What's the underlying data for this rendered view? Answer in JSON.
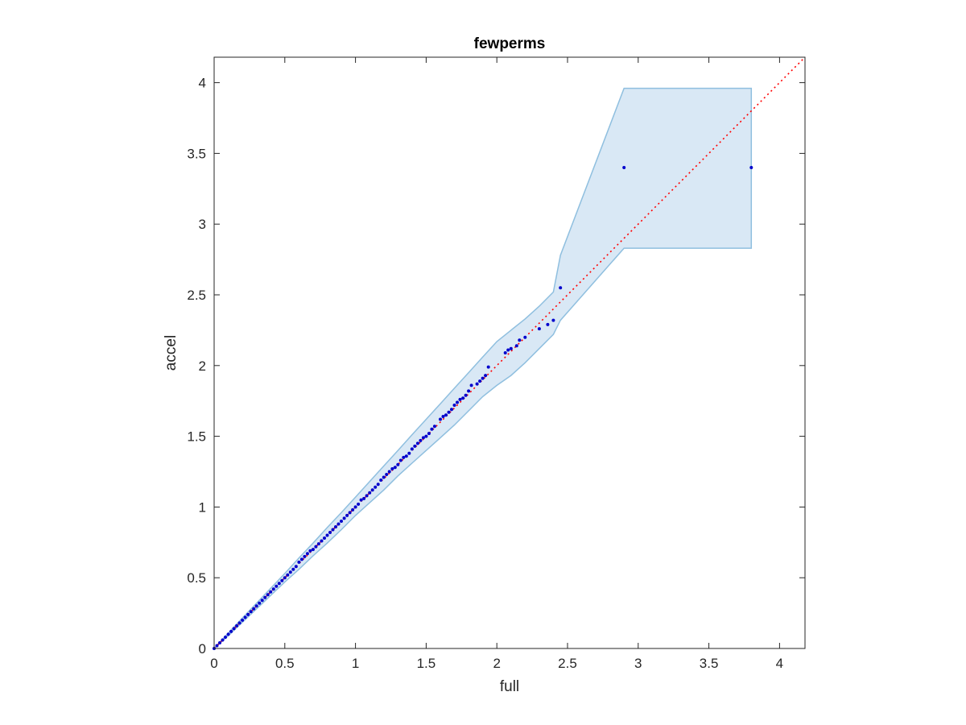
{
  "chart_data": {
    "type": "scatter",
    "title": "fewperms",
    "xlabel": "full",
    "ylabel": "accel",
    "xlim": [
      0,
      4.18
    ],
    "ylim": [
      0,
      4.18
    ],
    "xticks": [
      0,
      0.5,
      1,
      1.5,
      2,
      2.5,
      3,
      3.5,
      4
    ],
    "yticks": [
      0,
      0.5,
      1,
      1.5,
      2,
      2.5,
      3,
      3.5,
      4
    ],
    "xtick_labels": [
      "0",
      "0.5",
      "1",
      "1.5",
      "2",
      "2.5",
      "3",
      "3.5",
      "4"
    ],
    "ytick_labels": [
      "0",
      "0.5",
      "1",
      "1.5",
      "2",
      "2.5",
      "3",
      "3.5",
      "4"
    ],
    "grid": false,
    "reference_line": {
      "style": "dotted",
      "color": "#ff0000",
      "from": [
        0,
        0
      ],
      "to": [
        4.18,
        4.18
      ]
    },
    "band": {
      "fill": "#d9e8f5",
      "stroke": "#8fbfdf",
      "upper": [
        [
          0,
          0
        ],
        [
          0.1,
          0.11
        ],
        [
          0.2,
          0.215
        ],
        [
          0.3,
          0.32
        ],
        [
          0.4,
          0.425
        ],
        [
          0.5,
          0.53
        ],
        [
          0.6,
          0.64
        ],
        [
          0.7,
          0.745
        ],
        [
          0.8,
          0.855
        ],
        [
          0.9,
          0.96
        ],
        [
          1.0,
          1.07
        ],
        [
          1.1,
          1.18
        ],
        [
          1.2,
          1.29
        ],
        [
          1.3,
          1.4
        ],
        [
          1.4,
          1.51
        ],
        [
          1.5,
          1.62
        ],
        [
          1.6,
          1.73
        ],
        [
          1.7,
          1.84
        ],
        [
          1.8,
          1.95
        ],
        [
          1.9,
          2.06
        ],
        [
          2.0,
          2.17
        ],
        [
          2.1,
          2.25
        ],
        [
          2.2,
          2.33
        ],
        [
          2.3,
          2.42
        ],
        [
          2.4,
          2.52
        ],
        [
          2.45,
          2.78
        ],
        [
          2.9,
          3.96
        ],
        [
          3.8,
          3.96
        ]
      ],
      "lower": [
        [
          0,
          0
        ],
        [
          0.1,
          0.09
        ],
        [
          0.2,
          0.185
        ],
        [
          0.3,
          0.28
        ],
        [
          0.4,
          0.375
        ],
        [
          0.5,
          0.47
        ],
        [
          0.6,
          0.56
        ],
        [
          0.7,
          0.655
        ],
        [
          0.8,
          0.745
        ],
        [
          0.9,
          0.84
        ],
        [
          1.0,
          0.94
        ],
        [
          1.1,
          1.03
        ],
        [
          1.2,
          1.12
        ],
        [
          1.3,
          1.22
        ],
        [
          1.4,
          1.31
        ],
        [
          1.5,
          1.4
        ],
        [
          1.6,
          1.49
        ],
        [
          1.7,
          1.58
        ],
        [
          1.8,
          1.68
        ],
        [
          1.9,
          1.78
        ],
        [
          2.0,
          1.86
        ],
        [
          2.1,
          1.93
        ],
        [
          2.2,
          2.02
        ],
        [
          2.3,
          2.12
        ],
        [
          2.4,
          2.22
        ],
        [
          2.45,
          2.32
        ],
        [
          2.9,
          2.83
        ],
        [
          3.8,
          2.83
        ]
      ]
    },
    "series": [
      {
        "color": "#0000cc",
        "points": [
          [
            0,
            0
          ],
          [
            0.02,
            0.02
          ],
          [
            0.04,
            0.04
          ],
          [
            0.06,
            0.06
          ],
          [
            0.08,
            0.08
          ],
          [
            0.1,
            0.1
          ],
          [
            0.12,
            0.12
          ],
          [
            0.14,
            0.14
          ],
          [
            0.16,
            0.16
          ],
          [
            0.18,
            0.18
          ],
          [
            0.2,
            0.2
          ],
          [
            0.22,
            0.22
          ],
          [
            0.24,
            0.24
          ],
          [
            0.26,
            0.26
          ],
          [
            0.28,
            0.28
          ],
          [
            0.3,
            0.3
          ],
          [
            0.32,
            0.32
          ],
          [
            0.34,
            0.34
          ],
          [
            0.36,
            0.36
          ],
          [
            0.38,
            0.38
          ],
          [
            0.4,
            0.4
          ],
          [
            0.42,
            0.42
          ],
          [
            0.44,
            0.44
          ],
          [
            0.46,
            0.46
          ],
          [
            0.48,
            0.48
          ],
          [
            0.5,
            0.5
          ],
          [
            0.52,
            0.52
          ],
          [
            0.54,
            0.54
          ],
          [
            0.56,
            0.56
          ],
          [
            0.58,
            0.58
          ],
          [
            0.6,
            0.61
          ],
          [
            0.62,
            0.63
          ],
          [
            0.64,
            0.65
          ],
          [
            0.66,
            0.67
          ],
          [
            0.68,
            0.69
          ],
          [
            0.7,
            0.7
          ],
          [
            0.72,
            0.72
          ],
          [
            0.74,
            0.74
          ],
          [
            0.76,
            0.76
          ],
          [
            0.78,
            0.78
          ],
          [
            0.8,
            0.8
          ],
          [
            0.82,
            0.82
          ],
          [
            0.84,
            0.84
          ],
          [
            0.86,
            0.86
          ],
          [
            0.88,
            0.88
          ],
          [
            0.9,
            0.9
          ],
          [
            0.92,
            0.92
          ],
          [
            0.94,
            0.94
          ],
          [
            0.96,
            0.96
          ],
          [
            0.98,
            0.98
          ],
          [
            1.0,
            1.0
          ],
          [
            1.02,
            1.02
          ],
          [
            1.04,
            1.05
          ],
          [
            1.06,
            1.06
          ],
          [
            1.08,
            1.08
          ],
          [
            1.1,
            1.1
          ],
          [
            1.12,
            1.12
          ],
          [
            1.14,
            1.14
          ],
          [
            1.16,
            1.16
          ],
          [
            1.18,
            1.19
          ],
          [
            1.2,
            1.21
          ],
          [
            1.22,
            1.23
          ],
          [
            1.24,
            1.25
          ],
          [
            1.26,
            1.27
          ],
          [
            1.28,
            1.28
          ],
          [
            1.3,
            1.3
          ],
          [
            1.32,
            1.33
          ],
          [
            1.34,
            1.35
          ],
          [
            1.36,
            1.36
          ],
          [
            1.38,
            1.38
          ],
          [
            1.4,
            1.41
          ],
          [
            1.42,
            1.43
          ],
          [
            1.44,
            1.45
          ],
          [
            1.46,
            1.47
          ],
          [
            1.48,
            1.49
          ],
          [
            1.5,
            1.5
          ],
          [
            1.52,
            1.52
          ],
          [
            1.54,
            1.55
          ],
          [
            1.56,
            1.57
          ],
          [
            1.6,
            1.62
          ],
          [
            1.62,
            1.64
          ],
          [
            1.64,
            1.65
          ],
          [
            1.66,
            1.67
          ],
          [
            1.68,
            1.69
          ],
          [
            1.7,
            1.72
          ],
          [
            1.72,
            1.74
          ],
          [
            1.74,
            1.76
          ],
          [
            1.76,
            1.77
          ],
          [
            1.78,
            1.79
          ],
          [
            1.8,
            1.82
          ],
          [
            1.82,
            1.86
          ],
          [
            1.86,
            1.87
          ],
          [
            1.88,
            1.89
          ],
          [
            1.9,
            1.91
          ],
          [
            1.92,
            1.93
          ],
          [
            1.94,
            1.99
          ],
          [
            2.06,
            2.09
          ],
          [
            2.08,
            2.11
          ],
          [
            2.1,
            2.12
          ],
          [
            2.14,
            2.14
          ],
          [
            2.16,
            2.18
          ],
          [
            2.2,
            2.2
          ],
          [
            2.3,
            2.26
          ],
          [
            2.36,
            2.29
          ],
          [
            2.4,
            2.32
          ],
          [
            2.45,
            2.55
          ],
          [
            2.9,
            3.4
          ],
          [
            3.8,
            3.4
          ]
        ]
      }
    ]
  }
}
